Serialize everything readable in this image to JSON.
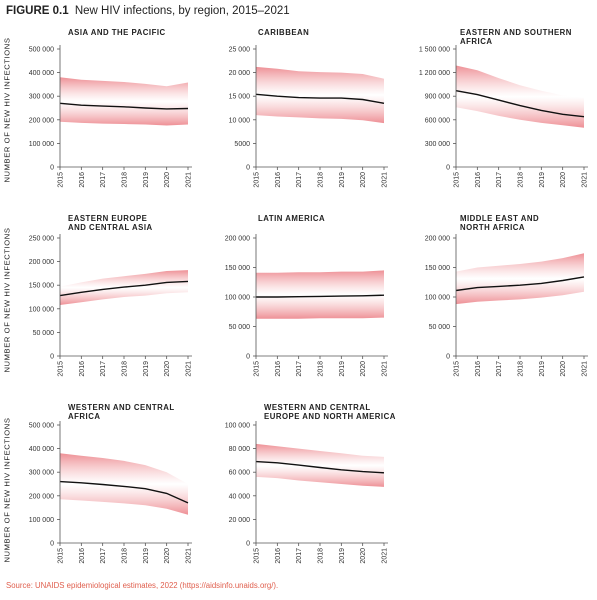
{
  "figure": {
    "label": "FIGURE 0.1",
    "title": "New HIV infections, by region, 2015–2021",
    "ylabel": "NUMBER OF NEW HIV INFECTIONS",
    "source": "Source: UNAIDS epidemiological estimates, 2022 (https://aidsinfo.unaids.org/)."
  },
  "colors": {
    "band": "#f4aeb1",
    "band_edge": "#ed8a90",
    "line": "#111111",
    "axis": "#555555"
  },
  "chart_data": [
    {
      "type": "area",
      "title": "ASIA AND THE PACIFIC",
      "title_lines": [
        "ASIA AND THE PACIFIC"
      ],
      "x": [
        2015,
        2016,
        2017,
        2018,
        2019,
        2020,
        2021
      ],
      "ylim": [
        0,
        500000
      ],
      "yticks": [
        0,
        100000,
        200000,
        300000,
        400000,
        500000
      ],
      "ytick_labels": [
        "0",
        "100 000",
        "200 000",
        "300 000",
        "400 000",
        "500 000"
      ],
      "estimate": [
        270000,
        262000,
        258000,
        255000,
        250000,
        246000,
        248000
      ],
      "lower": [
        192000,
        187000,
        184000,
        182000,
        180000,
        176000,
        180000
      ],
      "upper": [
        380000,
        370000,
        365000,
        360000,
        352000,
        342000,
        358000
      ]
    },
    {
      "type": "area",
      "title": "CARIBBEAN",
      "title_lines": [
        "CARIBBEAN"
      ],
      "x": [
        2015,
        2016,
        2017,
        2018,
        2019,
        2020,
        2021
      ],
      "ylim": [
        0,
        25000
      ],
      "yticks": [
        0,
        5000,
        10000,
        15000,
        20000,
        25000
      ],
      "ytick_labels": [
        "0",
        "5000",
        "10 000",
        "15 000",
        "20 000",
        "25 000"
      ],
      "estimate": [
        15400,
        15000,
        14700,
        14600,
        14600,
        14300,
        13500
      ],
      "lower": [
        11000,
        10700,
        10500,
        10300,
        10200,
        9900,
        9300
      ],
      "upper": [
        21200,
        20800,
        20300,
        20100,
        20000,
        19700,
        18700
      ]
    },
    {
      "type": "area",
      "title": "EASTERN AND SOUTHERN AFRICA",
      "title_lines": [
        "EASTERN AND SOUTHERN",
        "AFRICA"
      ],
      "x": [
        2015,
        2016,
        2017,
        2018,
        2019,
        2020,
        2021
      ],
      "ylim": [
        0,
        1500000
      ],
      "yticks": [
        0,
        300000,
        600000,
        900000,
        1200000,
        1500000
      ],
      "ytick_labels": [
        "0",
        "300 000",
        "600 000",
        "900 000",
        "1 200 000",
        "1 500 000"
      ],
      "estimate": [
        970000,
        920000,
        850000,
        780000,
        720000,
        670000,
        640000
      ],
      "lower": [
        760000,
        710000,
        650000,
        600000,
        560000,
        530000,
        500000
      ],
      "upper": [
        1290000,
        1230000,
        1130000,
        1040000,
        970000,
        910000,
        880000
      ]
    },
    {
      "type": "area",
      "title": "EASTERN EUROPE AND CENTRAL ASIA",
      "title_lines": [
        "EASTERN EUROPE",
        "AND CENTRAL ASIA"
      ],
      "x": [
        2015,
        2016,
        2017,
        2018,
        2019,
        2020,
        2021
      ],
      "ylim": [
        0,
        250000
      ],
      "yticks": [
        0,
        50000,
        100000,
        150000,
        200000,
        250000
      ],
      "ytick_labels": [
        "0",
        "50 000",
        "100 000",
        "150 000",
        "200 000",
        "250 000"
      ],
      "estimate": [
        128000,
        135000,
        141000,
        146000,
        150000,
        156000,
        158000
      ],
      "lower": [
        108000,
        114000,
        120000,
        125000,
        128000,
        133000,
        135000
      ],
      "upper": [
        147000,
        156000,
        164000,
        169000,
        174000,
        180000,
        182000
      ]
    },
    {
      "type": "area",
      "title": "LATIN AMERICA",
      "title_lines": [
        "LATIN AMERICA"
      ],
      "x": [
        2015,
        2016,
        2017,
        2018,
        2019,
        2020,
        2021
      ],
      "ylim": [
        0,
        200000
      ],
      "yticks": [
        0,
        50000,
        100000,
        150000,
        200000
      ],
      "ytick_labels": [
        "0",
        "50 000",
        "100 000",
        "150 000",
        "200 000"
      ],
      "estimate": [
        100000,
        100000,
        100500,
        101000,
        101500,
        102000,
        103000
      ],
      "lower": [
        63000,
        63000,
        63000,
        64000,
        64000,
        64000,
        65000
      ],
      "upper": [
        141000,
        141000,
        142000,
        142000,
        143000,
        143000,
        145000
      ]
    },
    {
      "type": "area",
      "title": "MIDDLE EAST AND NORTH AFRICA",
      "title_lines": [
        "MIDDLE EAST AND",
        "NORTH AFRICA"
      ],
      "x": [
        2015,
        2016,
        2017,
        2018,
        2019,
        2020,
        2021
      ],
      "ylim": [
        0,
        200000
      ],
      "yticks": [
        0,
        50000,
        100000,
        150000,
        200000
      ],
      "ytick_labels": [
        "0",
        "50 000",
        "100 000",
        "150 000",
        "200 000"
      ],
      "estimate": [
        111000,
        116000,
        118000,
        120000,
        123000,
        128000,
        134000
      ],
      "lower": [
        88000,
        92000,
        94000,
        96000,
        99000,
        103000,
        109000
      ],
      "upper": [
        143000,
        150000,
        153000,
        156000,
        160000,
        166000,
        174000
      ]
    },
    {
      "type": "area",
      "title": "WESTERN AND CENTRAL AFRICA",
      "title_lines": [
        "WESTERN AND CENTRAL",
        "AFRICA"
      ],
      "x": [
        2015,
        2016,
        2017,
        2018,
        2019,
        2020,
        2021
      ],
      "ylim": [
        0,
        500000
      ],
      "yticks": [
        0,
        100000,
        200000,
        300000,
        400000,
        500000
      ],
      "ytick_labels": [
        "0",
        "100 000",
        "200 000",
        "300 000",
        "400 000",
        "500 000"
      ],
      "estimate": [
        260000,
        255000,
        248000,
        240000,
        230000,
        210000,
        170000
      ],
      "lower": [
        185000,
        180000,
        174000,
        168000,
        160000,
        145000,
        120000
      ],
      "upper": [
        380000,
        370000,
        360000,
        348000,
        330000,
        300000,
        250000
      ]
    },
    {
      "type": "area",
      "title": "WESTERN AND CENTRAL EUROPE AND NORTH AMERICA",
      "title_lines": [
        "WESTERN AND CENTRAL",
        "EUROPE AND NORTH AMERICA"
      ],
      "x": [
        2015,
        2016,
        2017,
        2018,
        2019,
        2020,
        2021
      ],
      "ylim": [
        0,
        100000
      ],
      "yticks": [
        0,
        20000,
        40000,
        60000,
        80000,
        100000
      ],
      "ytick_labels": [
        "0",
        "20 000",
        "40 000",
        "60 000",
        "80 000",
        "100 000"
      ],
      "estimate": [
        69000,
        68000,
        66000,
        64000,
        62000,
        60500,
        59500
      ],
      "lower": [
        56000,
        55000,
        53000,
        51500,
        50000,
        48500,
        47500
      ],
      "upper": [
        84000,
        82000,
        80000,
        78000,
        76000,
        74000,
        73000
      ]
    }
  ]
}
